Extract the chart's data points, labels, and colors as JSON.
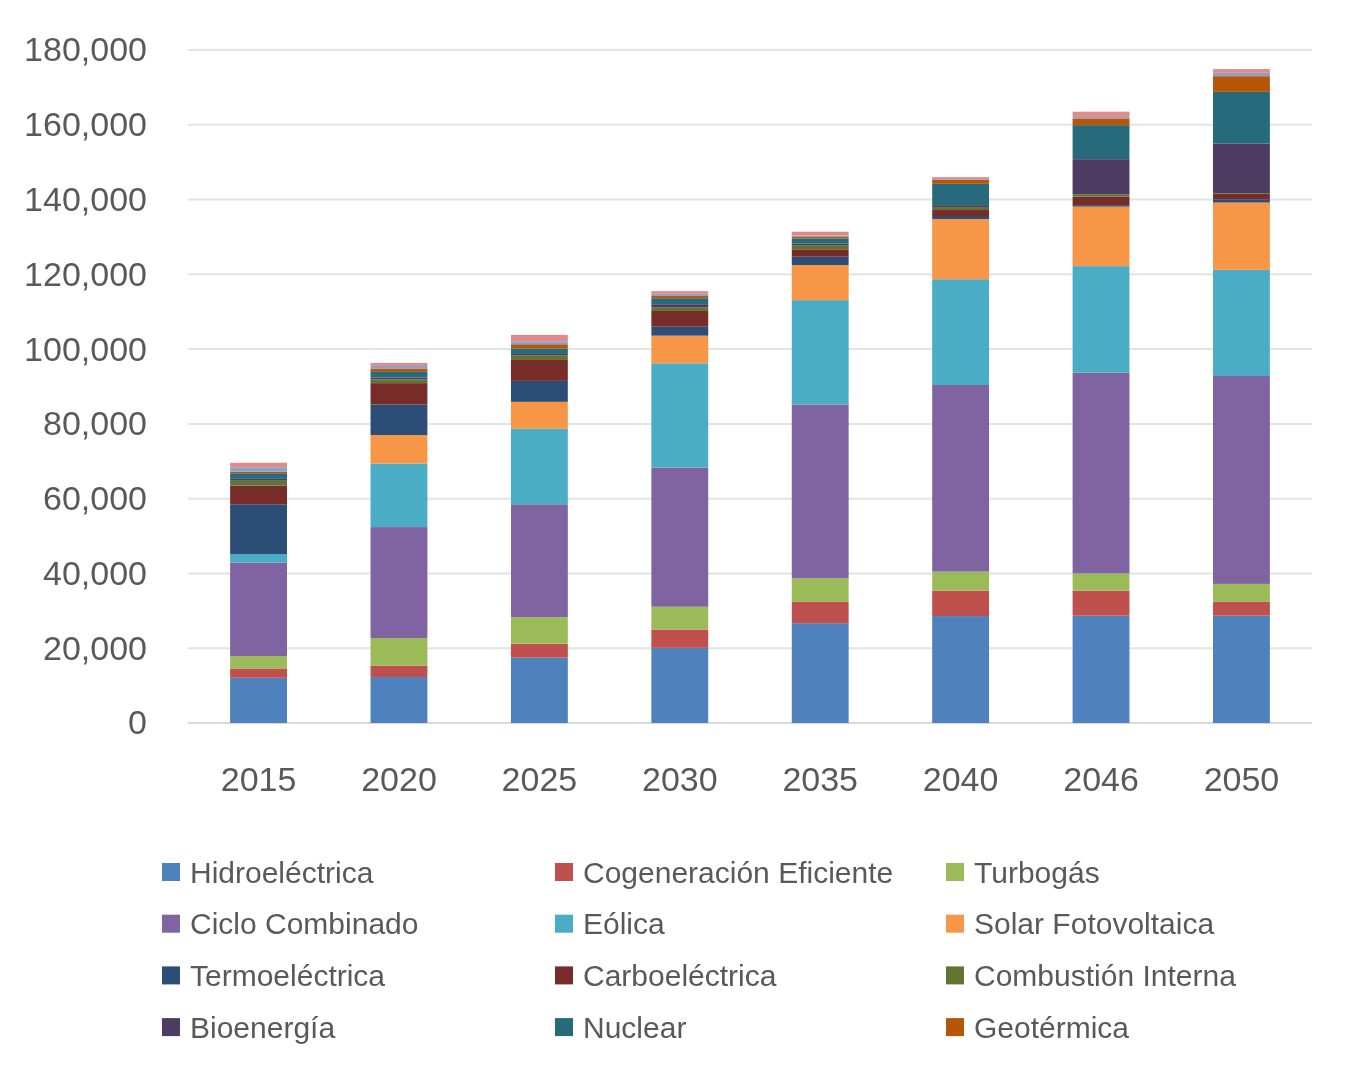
{
  "chart_data": {
    "type": "bar",
    "stacked": true,
    "categories": [
      "2015",
      "2020",
      "2025",
      "2030",
      "2035",
      "2040",
      "2046",
      "2050"
    ],
    "ylim": [
      0,
      180000
    ],
    "yticks": [
      {
        "value": 0,
        "label": "0"
      },
      {
        "value": 20000,
        "label": "20,000"
      },
      {
        "value": 40000,
        "label": "40,000"
      },
      {
        "value": 60000,
        "label": "60,000"
      },
      {
        "value": 80000,
        "label": "80,000"
      },
      {
        "value": 100000,
        "label": "100,000"
      },
      {
        "value": 120000,
        "label": "120,000"
      },
      {
        "value": 140000,
        "label": "140,000"
      },
      {
        "value": 160000,
        "label": "160,000"
      },
      {
        "value": 180000,
        "label": "180,000"
      }
    ],
    "grid": "y",
    "legend": "bottom",
    "series": [
      {
        "name": "Hidroeléctrica",
        "color": "#4f81bd",
        "values": [
          12100,
          12300,
          17500,
          20100,
          26700,
          28600,
          28700,
          28700
        ]
      },
      {
        "name": "Cogeneración Eficiente",
        "color": "#c0504d",
        "values": [
          2500,
          3000,
          3700,
          4900,
          5700,
          6800,
          6700,
          3700
        ]
      },
      {
        "name": "Turbogás",
        "color": "#9bbb59",
        "values": [
          3300,
          7400,
          7100,
          6100,
          6300,
          5100,
          4600,
          4800
        ]
      },
      {
        "name": "Ciclo Combinado",
        "color": "#8064a2",
        "values": [
          25000,
          29700,
          30200,
          37200,
          46500,
          49900,
          53700,
          55600
        ]
      },
      {
        "name": "Eólica",
        "color": "#4bacc6",
        "values": [
          2300,
          17000,
          20200,
          27900,
          27900,
          28300,
          28500,
          28400
        ]
      },
      {
        "name": "Solar Fotovoltaica",
        "color": "#f79646",
        "values": [
          0,
          7600,
          7200,
          7400,
          9400,
          16100,
          15900,
          18000
        ]
      },
      {
        "name": "Termoeléctrica",
        "color": "#2c4d75",
        "values": [
          13300,
          8200,
          5600,
          2400,
          2200,
          800,
          400,
          900
        ]
      },
      {
        "name": "Carboeléctrica",
        "color": "#772c2a",
        "values": [
          5000,
          5700,
          5600,
          4200,
          2000,
          1600,
          2300,
          1400
        ]
      },
      {
        "name": "Combustión Interna",
        "color": "#5f7530",
        "values": [
          1300,
          1000,
          1200,
          1000,
          1100,
          800,
          600,
          200
        ]
      },
      {
        "name": "Bioenergía",
        "color": "#4d3b62",
        "values": [
          500,
          500,
          400,
          800,
          400,
          500,
          9400,
          13300
        ]
      },
      {
        "name": "Nuclear",
        "color": "#276a7c",
        "values": [
          1500,
          1500,
          1500,
          1600,
          1400,
          5700,
          9100,
          13800
        ]
      },
      {
        "name": "Geotérmica",
        "color": "#b65708",
        "values": [
          400,
          800,
          1100,
          600,
          400,
          1100,
          1800,
          4200
        ]
      },
      {
        "color": "#8ea0c6",
        "values": [
          1200,
          800,
          800,
          600,
          400,
          200,
          400,
          900
        ]
      },
      {
        "color": "#e08a8a",
        "values": [
          1200,
          800,
          1700,
          700,
          1000,
          500,
          1400,
          1000
        ]
      }
    ]
  }
}
